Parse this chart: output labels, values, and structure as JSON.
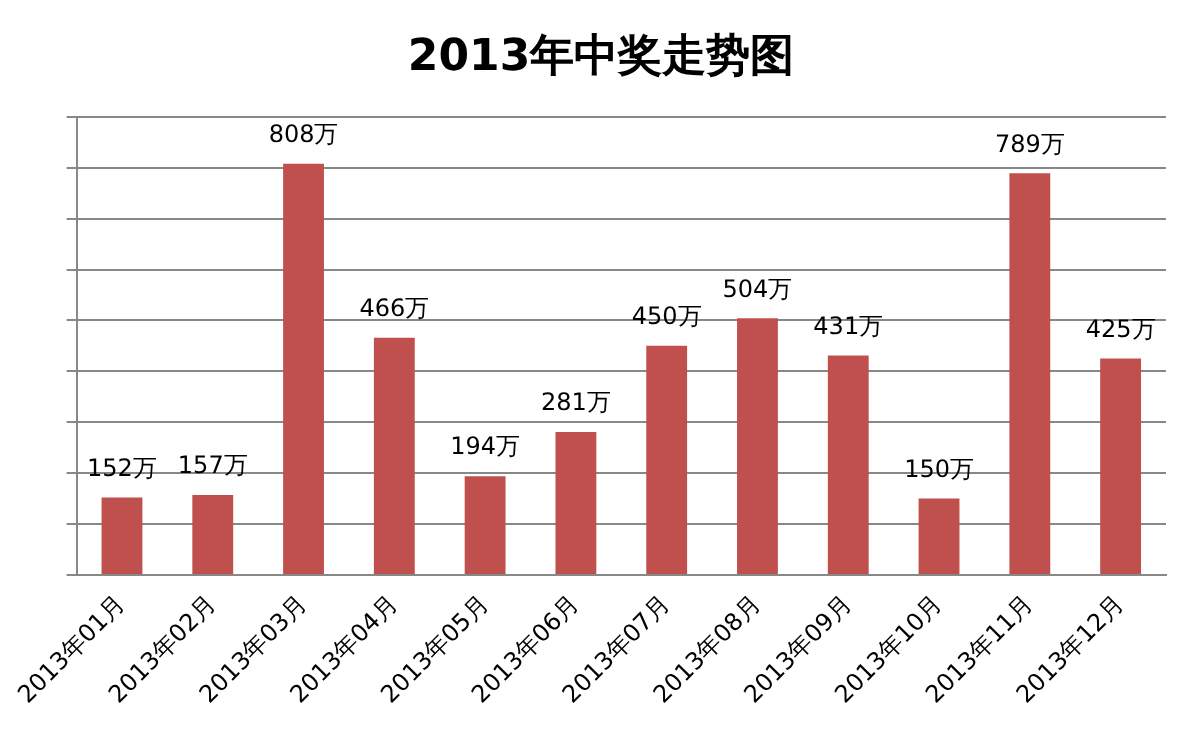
{
  "chart_data": {
    "type": "bar",
    "title": "2013年中奖走势图",
    "categories": [
      "2013年01月",
      "2013年02月",
      "2013年03月",
      "2013年04月",
      "2013年05月",
      "2013年06月",
      "2013年07月",
      "2013年08月",
      "2013年09月",
      "2013年10月",
      "2013年11月",
      "2013年12月"
    ],
    "values": [
      152,
      157,
      808,
      466,
      194,
      281,
      450,
      504,
      431,
      150,
      789,
      425
    ],
    "value_labels": [
      "152万",
      "157万",
      "808万",
      "466万",
      "194万",
      "281万",
      "450万",
      "504万",
      "431万",
      "150万",
      "789万",
      "425万"
    ],
    "color": "#c0504d",
    "ylim": [
      0,
      900
    ],
    "yticks": [
      {
        "value": 0,
        "label": null
      },
      {
        "value": 100,
        "label": null
      },
      {
        "value": 200,
        "label": null
      },
      {
        "value": 300,
        "label": null
      },
      {
        "value": 400,
        "label": null
      },
      {
        "value": 500,
        "label": null
      },
      {
        "value": 600,
        "label": null
      },
      {
        "value": 700,
        "label": null
      },
      {
        "value": 800,
        "label": null
      },
      {
        "value": 900,
        "label": null
      }
    ],
    "grid": "y",
    "tick_labels": "x"
  }
}
